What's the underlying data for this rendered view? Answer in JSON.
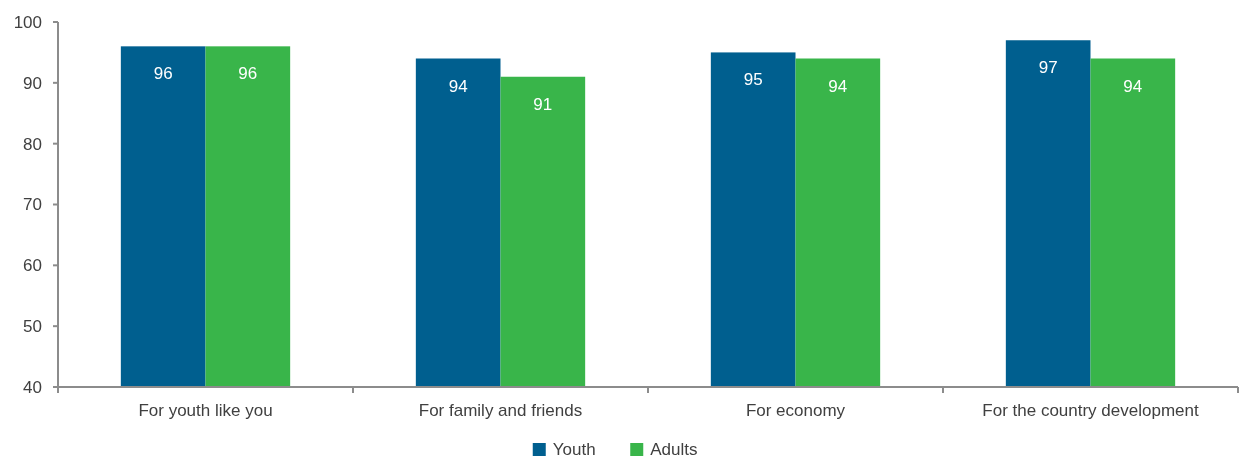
{
  "chart_data": {
    "type": "bar",
    "categories": [
      "For youth like you",
      "For family and friends",
      "For economy",
      "For the country development"
    ],
    "series": [
      {
        "name": "Youth",
        "color": "#005f8f",
        "values": [
          96,
          94,
          95,
          97
        ]
      },
      {
        "name": "Adults",
        "color": "#39b54a",
        "values": [
          96,
          91,
          94,
          94
        ]
      }
    ],
    "ylim": [
      40,
      100
    ],
    "yticks": [
      40,
      50,
      60,
      70,
      80,
      90,
      100
    ],
    "data_labels": true,
    "legend": "bottom"
  }
}
